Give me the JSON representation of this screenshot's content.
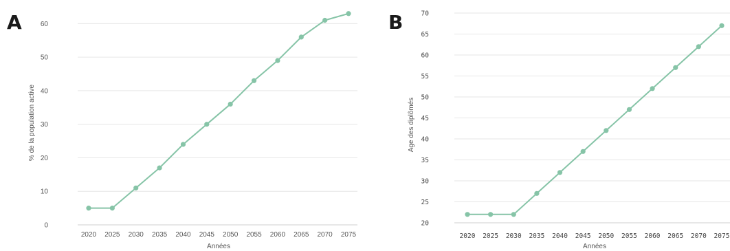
{
  "colors": {
    "series": "#86c4a7",
    "grid": "#e6e6e6"
  },
  "panels": [
    {
      "letter": "A"
    },
    {
      "letter": "B"
    }
  ],
  "chart_data": [
    {
      "type": "line",
      "xlabel": "Années",
      "ylabel": "% de la population active",
      "ylim": [
        0,
        65
      ],
      "yticks": [
        0,
        10,
        20,
        30,
        40,
        50,
        60
      ],
      "categories": [
        "2020",
        "2025",
        "2030",
        "2035",
        "2040",
        "2045",
        "2050",
        "2055",
        "2060",
        "2065",
        "2070",
        "2075"
      ],
      "series": [
        {
          "values": [
            5,
            5,
            11,
            17,
            24,
            30,
            36,
            43,
            49,
            56,
            61,
            63
          ]
        }
      ],
      "grid": true,
      "legend": "none"
    },
    {
      "type": "line",
      "xlabel": "Années",
      "ylabel": "Age des diplômés",
      "ylim": [
        20,
        70
      ],
      "yticks": [
        20,
        25,
        30,
        35,
        40,
        45,
        50,
        55,
        60,
        65,
        70
      ],
      "categories": [
        "2020",
        "2025",
        "2030",
        "2035",
        "2040",
        "2045",
        "2050",
        "2055",
        "2060",
        "2065",
        "2070",
        "2075"
      ],
      "series": [
        {
          "values": [
            22,
            22,
            22,
            27,
            32,
            37,
            42,
            47,
            52,
            57,
            62,
            67
          ]
        }
      ],
      "grid": true,
      "legend": "none"
    }
  ]
}
